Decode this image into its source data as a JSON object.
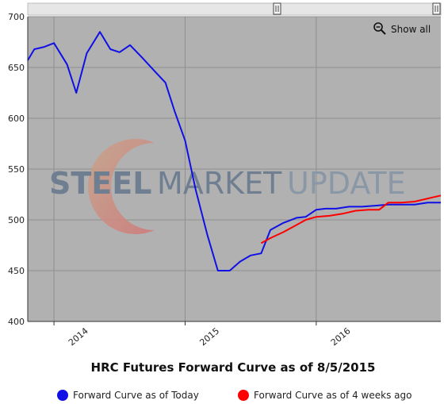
{
  "chart_data": {
    "type": "line",
    "title": "HRC Futures Forward Curve as of 8/5/2015",
    "xlabel": "",
    "ylabel": "",
    "ylim": [
      400,
      700
    ],
    "yticks": [
      400,
      450,
      500,
      550,
      600,
      650,
      700
    ],
    "xlim": [
      2013.6,
      2016.75
    ],
    "xticks": [
      {
        "label": "2014",
        "value": 2014.0
      },
      {
        "label": "2015",
        "value": 2015.0
      },
      {
        "label": "2016",
        "value": 2016.0
      }
    ],
    "grid": true,
    "legend_position": "bottom",
    "series": [
      {
        "name": "Forward Curve as of Today",
        "color": "#1010e6",
        "points": [
          [
            2013.6,
            657
          ],
          [
            2013.65,
            668
          ],
          [
            2013.72,
            670
          ],
          [
            2013.8,
            674
          ],
          [
            2013.9,
            653
          ],
          [
            2013.97,
            625
          ],
          [
            2014.05,
            664
          ],
          [
            2014.15,
            685
          ],
          [
            2014.23,
            668
          ],
          [
            2014.3,
            665
          ],
          [
            2014.38,
            672
          ],
          [
            2014.47,
            660
          ],
          [
            2014.57,
            646
          ],
          [
            2014.65,
            635
          ],
          [
            2014.72,
            607
          ],
          [
            2014.8,
            578
          ],
          [
            2014.88,
            530
          ],
          [
            2014.97,
            485
          ],
          [
            2015.05,
            450
          ],
          [
            2015.14,
            450
          ],
          [
            2015.22,
            459
          ],
          [
            2015.3,
            465
          ],
          [
            2015.38,
            467
          ],
          [
            2015.45,
            490
          ],
          [
            2015.55,
            497
          ],
          [
            2015.65,
            502
          ],
          [
            2015.72,
            503
          ],
          [
            2015.8,
            510
          ],
          [
            2015.87,
            511
          ],
          [
            2015.95,
            511
          ],
          [
            2016.05,
            513
          ],
          [
            2016.15,
            513
          ],
          [
            2016.25,
            514
          ],
          [
            2016.35,
            515
          ],
          [
            2016.45,
            515
          ],
          [
            2016.55,
            515
          ],
          [
            2016.65,
            517
          ],
          [
            2016.75,
            517
          ]
        ]
      },
      {
        "name": "Forward Curve as of 4 weeks ago",
        "color": "#ff0000",
        "points": [
          [
            2015.38,
            477
          ],
          [
            2015.45,
            482
          ],
          [
            2015.55,
            488
          ],
          [
            2015.65,
            495
          ],
          [
            2015.72,
            500
          ],
          [
            2015.8,
            503
          ],
          [
            2015.9,
            504
          ],
          [
            2016.0,
            506
          ],
          [
            2016.1,
            509
          ],
          [
            2016.2,
            510
          ],
          [
            2016.28,
            510
          ],
          [
            2016.35,
            517
          ],
          [
            2016.45,
            517
          ],
          [
            2016.55,
            518
          ],
          [
            2016.65,
            521
          ],
          [
            2016.75,
            524
          ]
        ]
      }
    ]
  },
  "controls": {
    "show_all_label": "Show all",
    "zoom_icon": "zoom-out-magnifier-icon",
    "scroll_handle_icon": "drag-handle-icon"
  },
  "watermark": {
    "brand_text_1": "STEEL",
    "brand_text_2": "MARKET",
    "brand_text_3": "UPDATE"
  }
}
